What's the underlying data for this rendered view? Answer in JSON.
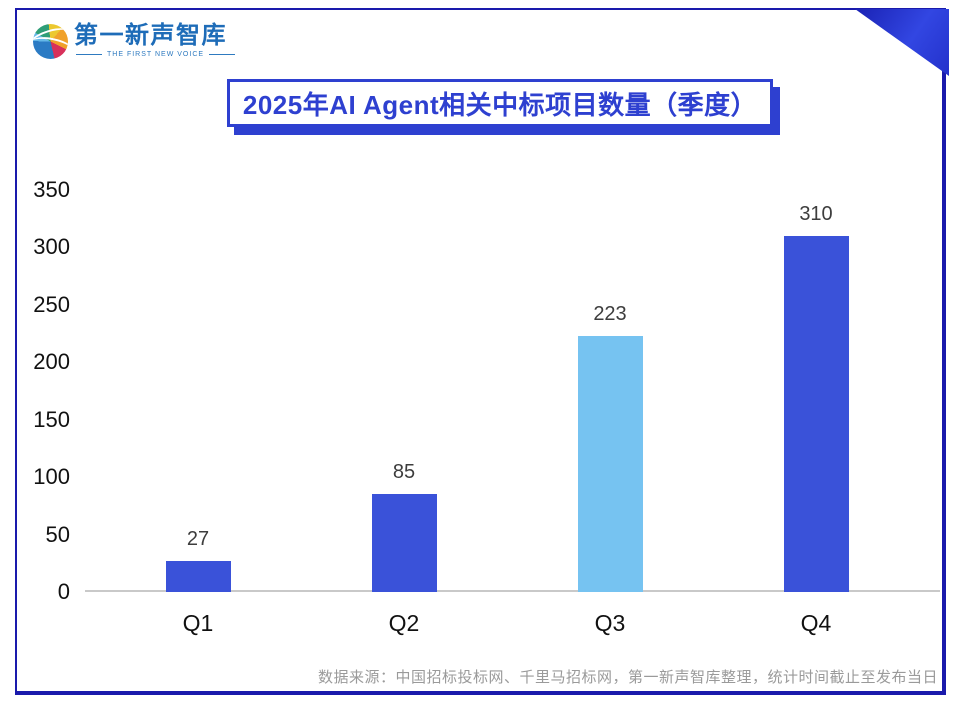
{
  "page": {
    "logo": {
      "name": "第一新声智库",
      "tagline": "THE FIRST NEW VOICE"
    },
    "title": "2025年AI Agent相关中标项目数量（季度）",
    "source_note": "数据来源：中国招标投标网、千里马招标网，第一新声智库整理，统计时间截止至发布当日",
    "colors": {
      "frame_border": "#1a1aac",
      "corner_triangle": "#2a3ad4",
      "title_accent": "#2e40d0",
      "logo_blue": "#1e6cb8",
      "axis_line": "#c9c9c9",
      "tick_text": "#111111",
      "value_label_text": "#3d3d3d",
      "source_text": "#9a9a9a"
    }
  },
  "chart_data": {
    "type": "bar",
    "title": "2025年AI Agent相关中标项目数量（季度）",
    "categories": [
      "Q1",
      "Q2",
      "Q3",
      "Q4"
    ],
    "values": [
      27,
      85,
      223,
      310
    ],
    "data_labels": [
      "27",
      "85",
      "223",
      "310"
    ],
    "bar_colors": [
      "#3a52d9",
      "#3a52d9",
      "#76c3f1",
      "#3a52d9"
    ],
    "bar_color_default": "#3a52d9",
    "bar_color_highlight": "#76c3f1",
    "xlabel": "",
    "ylabel": "",
    "ylim": [
      0,
      350
    ],
    "yticks": [
      0,
      50,
      100,
      150,
      200,
      250,
      300,
      350
    ],
    "grid": false,
    "legend": false
  }
}
